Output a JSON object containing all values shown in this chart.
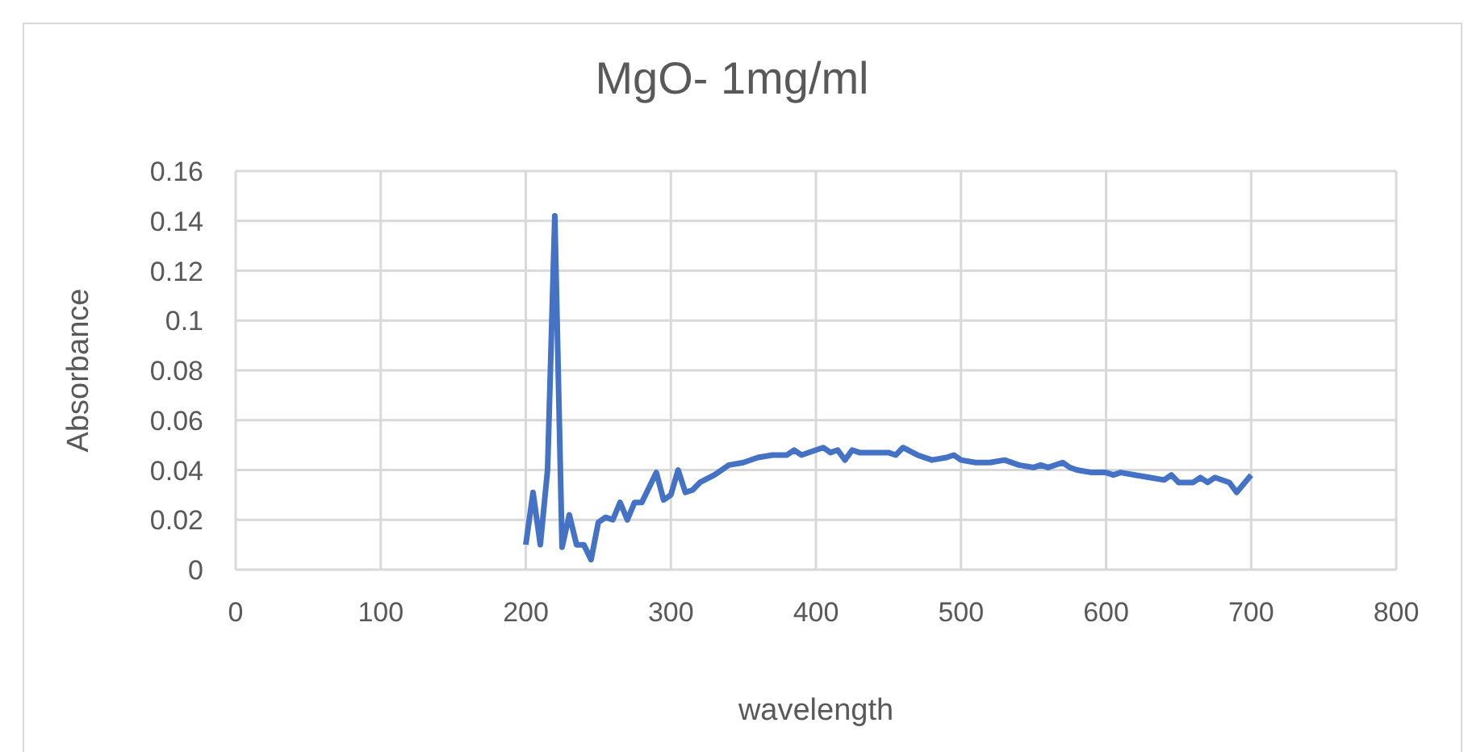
{
  "chart_data": {
    "type": "line",
    "title": "MgO- 1mg/ml",
    "xlabel": "wavelength",
    "ylabel": "Absorbance",
    "xlim": [
      0,
      800
    ],
    "xticks": [
      0,
      100,
      200,
      300,
      400,
      500,
      600,
      700,
      800
    ],
    "ylim": [
      0,
      0.16
    ],
    "yticks": [
      0,
      0.02,
      0.04,
      0.06,
      0.08,
      0.1,
      0.12,
      0.14,
      0.16
    ],
    "grid": true,
    "marker": "none",
    "line_style": "solid",
    "x": [
      200,
      205,
      210,
      215,
      220,
      225,
      230,
      235,
      240,
      245,
      250,
      255,
      260,
      265,
      270,
      275,
      280,
      285,
      290,
      295,
      300,
      305,
      310,
      315,
      320,
      330,
      340,
      350,
      360,
      370,
      380,
      385,
      390,
      400,
      405,
      410,
      415,
      420,
      425,
      430,
      450,
      455,
      460,
      470,
      480,
      490,
      495,
      500,
      510,
      520,
      530,
      540,
      550,
      555,
      560,
      570,
      575,
      580,
      590,
      600,
      605,
      610,
      620,
      630,
      640,
      645,
      650,
      660,
      665,
      670,
      675,
      685,
      690,
      700
    ],
    "series": [
      {
        "color": "#4472c4",
        "values": [
          0.01,
          0.031,
          0.01,
          0.04,
          0.142,
          0.009,
          0.022,
          0.01,
          0.01,
          0.004,
          0.019,
          0.021,
          0.02,
          0.027,
          0.02,
          0.027,
          0.027,
          0.033,
          0.039,
          0.028,
          0.03,
          0.04,
          0.031,
          0.032,
          0.035,
          0.038,
          0.042,
          0.043,
          0.045,
          0.046,
          0.046,
          0.048,
          0.046,
          0.048,
          0.049,
          0.047,
          0.048,
          0.044,
          0.048,
          0.047,
          0.047,
          0.046,
          0.049,
          0.046,
          0.044,
          0.045,
          0.046,
          0.044,
          0.043,
          0.043,
          0.044,
          0.042,
          0.041,
          0.042,
          0.041,
          0.043,
          0.041,
          0.04,
          0.039,
          0.039,
          0.038,
          0.039,
          0.038,
          0.037,
          0.036,
          0.038,
          0.035,
          0.035,
          0.037,
          0.035,
          0.037,
          0.035,
          0.031,
          0.038
        ]
      }
    ]
  }
}
